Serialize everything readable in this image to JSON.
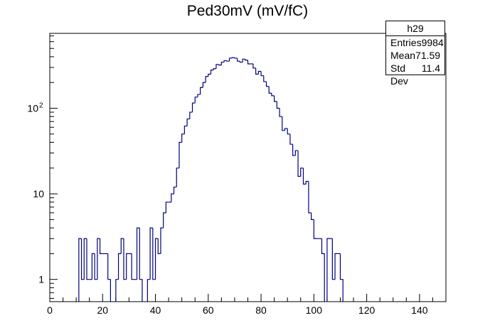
{
  "title": "Ped30mV (mV/fC)",
  "stats": {
    "name": "h29",
    "rows": [
      {
        "label": "Entries",
        "value": "9984"
      },
      {
        "label": "Mean",
        "value": "71.59"
      },
      {
        "label": "Std Dev",
        "value": "11.4"
      }
    ]
  },
  "chart_data": {
    "type": "bar",
    "title": "Ped30mV (mV/fC)",
    "xlabel": "",
    "ylabel": "",
    "xlim": [
      0,
      150
    ],
    "ylim": [
      0.55,
      750
    ],
    "y_scale": "log",
    "grid": false,
    "x_ticks": [
      "0",
      "20",
      "40",
      "60",
      "80",
      "100",
      "120",
      "140"
    ],
    "y_ticks": [
      {
        "value": 1,
        "label": "1"
      },
      {
        "value": 10,
        "label": "10"
      },
      {
        "value": 100,
        "label": "10",
        "exponent": "2"
      }
    ],
    "bin_width": 1,
    "line_color": "#000080",
    "bins": [
      [
        11,
        3
      ],
      [
        12,
        1
      ],
      [
        13,
        3
      ],
      [
        14,
        1
      ],
      [
        15,
        1
      ],
      [
        16,
        2
      ],
      [
        17,
        1
      ],
      [
        18,
        3
      ],
      [
        19,
        2
      ],
      [
        20,
        2
      ],
      [
        21,
        2
      ],
      [
        22,
        1
      ],
      [
        25,
        1
      ],
      [
        26,
        2
      ],
      [
        27,
        3
      ],
      [
        28,
        1
      ],
      [
        29,
        2
      ],
      [
        30,
        2
      ],
      [
        31,
        1
      ],
      [
        32,
        1
      ],
      [
        33,
        4
      ],
      [
        34,
        1
      ],
      [
        37,
        1
      ],
      [
        38,
        4
      ],
      [
        39,
        1
      ],
      [
        40,
        3
      ],
      [
        41,
        2
      ],
      [
        42,
        4
      ],
      [
        43,
        6
      ],
      [
        44,
        8
      ],
      [
        45,
        8
      ],
      [
        46,
        10
      ],
      [
        47,
        12
      ],
      [
        48,
        20
      ],
      [
        49,
        40
      ],
      [
        50,
        50
      ],
      [
        51,
        62
      ],
      [
        52,
        75
      ],
      [
        53,
        90
      ],
      [
        54,
        115
      ],
      [
        55,
        135
      ],
      [
        56,
        145
      ],
      [
        57,
        175
      ],
      [
        58,
        200
      ],
      [
        59,
        235
      ],
      [
        60,
        250
      ],
      [
        61,
        280
      ],
      [
        62,
        290
      ],
      [
        63,
        325
      ],
      [
        64,
        320
      ],
      [
        65,
        345
      ],
      [
        66,
        360
      ],
      [
        67,
        355
      ],
      [
        68,
        385
      ],
      [
        69,
        390
      ],
      [
        70,
        385
      ],
      [
        71,
        355
      ],
      [
        72,
        345
      ],
      [
        73,
        375
      ],
      [
        74,
        365
      ],
      [
        75,
        330
      ],
      [
        76,
        330
      ],
      [
        77,
        295
      ],
      [
        78,
        250
      ],
      [
        79,
        270
      ],
      [
        80,
        240
      ],
      [
        81,
        205
      ],
      [
        82,
        180
      ],
      [
        83,
        150
      ],
      [
        84,
        140
      ],
      [
        85,
        120
      ],
      [
        86,
        100
      ],
      [
        87,
        80
      ],
      [
        88,
        55
      ],
      [
        89,
        58
      ],
      [
        90,
        50
      ],
      [
        91,
        38
      ],
      [
        92,
        28
      ],
      [
        93,
        32
      ],
      [
        94,
        16
      ],
      [
        95,
        20
      ],
      [
        96,
        13
      ],
      [
        97,
        14
      ],
      [
        98,
        6
      ],
      [
        99,
        5
      ],
      [
        100,
        3
      ],
      [
        101,
        3
      ],
      [
        102,
        3
      ],
      [
        103,
        2
      ],
      [
        105,
        3
      ],
      [
        106,
        3
      ],
      [
        107,
        1
      ],
      [
        108,
        2
      ],
      [
        109,
        2
      ],
      [
        110,
        1
      ]
    ]
  }
}
